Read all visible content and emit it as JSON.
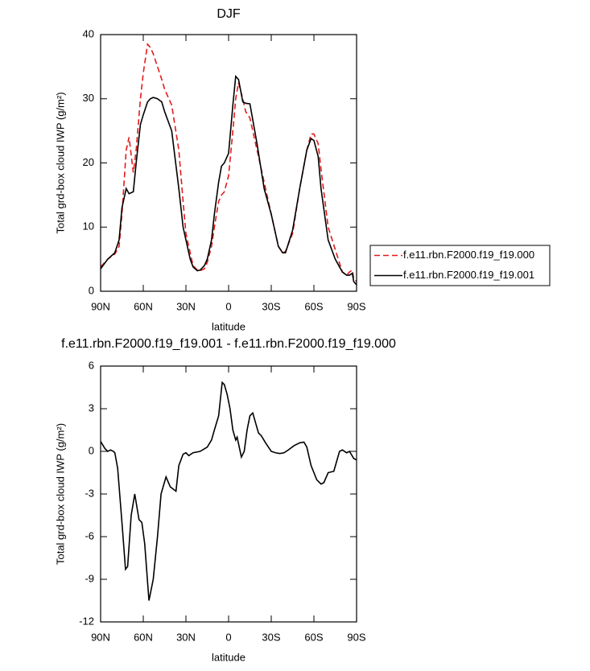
{
  "chart_data": [
    {
      "type": "line",
      "title": "DJF",
      "xlabel": "latitude",
      "ylabel": "Total grd-box cloud IWP (g/m²)",
      "x": [
        90,
        85,
        80,
        77,
        75,
        72,
        70,
        67,
        65,
        62,
        60,
        57,
        55,
        53,
        50,
        47,
        45,
        40,
        35,
        32,
        30,
        27,
        25,
        22,
        20,
        17,
        15,
        12,
        10,
        7,
        5,
        3,
        0,
        -3,
        -5,
        -7,
        -10,
        -12,
        -15,
        -20,
        -25,
        -30,
        -35,
        -38,
        -40,
        -45,
        -50,
        -55,
        -58,
        -60,
        -63,
        -65,
        -70,
        -75,
        -80,
        -83,
        -85,
        -87,
        -88,
        -90
      ],
      "series": [
        {
          "name": "f.e11.rbn.F2000.f19_f19.000",
          "color": "#e41a1c",
          "linestyle": "dashed",
          "values": [
            3.8,
            5.0,
            5.8,
            7,
            12,
            22,
            24,
            18.5,
            22,
            30,
            34,
            38.5,
            38,
            37,
            35,
            33,
            31.5,
            29,
            22,
            14,
            9,
            6,
            4,
            3.3,
            3.2,
            3.5,
            4.5,
            7,
            10,
            14,
            15,
            15.5,
            18,
            25,
            30,
            32.5,
            30,
            28,
            27,
            22,
            17,
            12,
            7,
            6,
            6.2,
            9,
            16,
            22,
            24.5,
            24.5,
            23,
            19,
            10,
            6.5,
            3,
            2.5,
            3,
            3.3,
            2,
            1.5
          ]
        },
        {
          "name": "f.e11.rbn.F2000.f19_f19.001",
          "color": "#000000",
          "linestyle": "solid",
          "values": [
            3.5,
            5,
            6,
            8,
            13,
            16,
            15.2,
            15.5,
            20,
            26,
            27.5,
            29.5,
            30,
            30.2,
            30,
            29.5,
            28,
            25,
            16,
            10,
            8,
            5,
            3.8,
            3.2,
            3.3,
            4,
            5,
            8,
            12,
            17,
            19.5,
            20,
            21.5,
            29,
            33.5,
            33,
            29.5,
            29.3,
            29.2,
            23,
            16,
            12,
            7,
            6,
            6,
            9.5,
            16,
            22,
            23.8,
            23.5,
            21,
            16,
            8,
            5,
            3,
            2.5,
            2.5,
            2.8,
            1.5,
            1
          ]
        }
      ],
      "xlim": [
        90,
        -90
      ],
      "xticks": [
        {
          "value": 90,
          "label": "90N"
        },
        {
          "value": 60,
          "label": "60N"
        },
        {
          "value": 30,
          "label": "30N"
        },
        0,
        {
          "value": -30,
          "label": "30S"
        },
        {
          "value": -60,
          "label": "60S"
        },
        {
          "value": -90,
          "label": "90S"
        }
      ],
      "ylim": [
        0,
        40
      ],
      "yticks": [
        0,
        10,
        20,
        30,
        40
      ],
      "legend": "right"
    },
    {
      "type": "line",
      "title": "f.e11.rbn.F2000.f19_f19.001 - f.e11.rbn.F2000.f19_f19.000",
      "xlabel": "latitude",
      "ylabel": "Total grd-box cloud IWP (g/m²)",
      "x": [
        90,
        87,
        85,
        83,
        81,
        80,
        78,
        75,
        72.5,
        71,
        68.5,
        66,
        63,
        61,
        59,
        56,
        53,
        50,
        47.5,
        44,
        41,
        37,
        35,
        32,
        30,
        28,
        25,
        20,
        15,
        12,
        10,
        7,
        4.5,
        3,
        1,
        -1,
        -3,
        -5,
        -6,
        -9,
        -11,
        -13,
        -15,
        -17,
        -19,
        -21,
        -23,
        -26,
        -30,
        -33,
        -36,
        -39,
        -42,
        -46,
        -50,
        -53,
        -55,
        -58,
        -62,
        -65,
        -67,
        -70,
        -74,
        -76,
        -78,
        -80,
        -83,
        -85,
        -88,
        -90
      ],
      "series": [
        {
          "name": null,
          "color": "#000000",
          "linestyle": "solid",
          "values": [
            0.7,
            0.2,
            0,
            0.1,
            0,
            -0.1,
            -1.2,
            -5,
            -8.3,
            -8.1,
            -4.5,
            -3,
            -4.8,
            -5,
            -6.5,
            -10.5,
            -9,
            -6,
            -3,
            -1.8,
            -2.5,
            -2.8,
            -1,
            -0.2,
            -0.1,
            -0.3,
            -0.1,
            0,
            0.3,
            0.8,
            1.5,
            2.5,
            4.85,
            4.7,
            4,
            3,
            1.5,
            0.8,
            1,
            -0.4,
            0,
            1.5,
            2.5,
            2.7,
            2,
            1.3,
            1.1,
            0.6,
            0,
            -0.1,
            -0.15,
            -0.1,
            0.1,
            0.4,
            0.6,
            0.65,
            0.3,
            -1,
            -2,
            -2.3,
            -2.2,
            -1.5,
            -1.4,
            -0.7,
            0,
            0.1,
            -0.1,
            0,
            -0.5,
            -0.6
          ]
        }
      ],
      "xlim": [
        90,
        -90
      ],
      "xticks": [
        {
          "value": 90,
          "label": "90N"
        },
        {
          "value": 60,
          "label": "60N"
        },
        {
          "value": 30,
          "label": "30N"
        },
        0,
        {
          "value": -30,
          "label": "30S"
        },
        {
          "value": -60,
          "label": "60S"
        },
        {
          "value": -90,
          "label": "90S"
        }
      ],
      "ylim": [
        -12,
        6
      ],
      "yticks": [
        -12,
        -9,
        -6,
        -3,
        0,
        3,
        6
      ]
    }
  ]
}
